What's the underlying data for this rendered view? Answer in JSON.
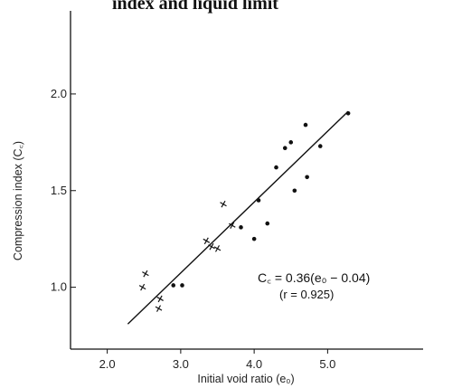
{
  "chart_data": {
    "type": "scatter",
    "title": "index and liquid limit",
    "xlabel": "Initial void ratio (e₀)",
    "ylabel": "Compression index (C꜀)",
    "xlim": [
      1.5,
      6.3
    ],
    "ylim": [
      0.68,
      2.43
    ],
    "x_ticks": [
      {
        "value": 2.0,
        "label": "2.0"
      },
      {
        "value": 3.0,
        "label": "3.0"
      },
      {
        "value": 4.0,
        "label": "4.0"
      },
      {
        "value": 5.0,
        "label": "5.0"
      }
    ],
    "y_ticks": [
      {
        "value": 1.0,
        "label": "1.0"
      },
      {
        "value": 1.5,
        "label": "1.5"
      },
      {
        "value": 2.0,
        "label": "2.0"
      }
    ],
    "grid": false,
    "series": [
      {
        "marker": "cross",
        "points": [
          {
            "x": 2.52,
            "y": 1.07
          },
          {
            "x": 2.48,
            "y": 1.0
          },
          {
            "x": 2.72,
            "y": 0.94
          },
          {
            "x": 2.7,
            "y": 0.89
          },
          {
            "x": 3.35,
            "y": 1.24
          },
          {
            "x": 3.42,
            "y": 1.21
          },
          {
            "x": 3.5,
            "y": 1.2
          },
          {
            "x": 3.58,
            "y": 1.43
          },
          {
            "x": 3.7,
            "y": 1.32
          }
        ]
      },
      {
        "marker": "dot",
        "points": [
          {
            "x": 2.9,
            "y": 1.01
          },
          {
            "x": 3.02,
            "y": 1.01
          },
          {
            "x": 3.82,
            "y": 1.31
          },
          {
            "x": 4.0,
            "y": 1.25
          },
          {
            "x": 4.06,
            "y": 1.45
          },
          {
            "x": 4.18,
            "y": 1.33
          },
          {
            "x": 4.3,
            "y": 1.62
          },
          {
            "x": 4.42,
            "y": 1.72
          },
          {
            "x": 4.5,
            "y": 1.75
          },
          {
            "x": 4.55,
            "y": 1.5
          },
          {
            "x": 4.7,
            "y": 1.84
          },
          {
            "x": 4.72,
            "y": 1.57
          },
          {
            "x": 4.9,
            "y": 1.73
          },
          {
            "x": 5.28,
            "y": 1.9
          }
        ]
      }
    ],
    "regression_line": {
      "x": [
        2.28,
        5.28
      ],
      "y": [
        0.81,
        1.91
      ]
    },
    "annotation": {
      "equation": "C꜀ = 0.36(e₀ − 0.04)",
      "r_label": "(r = 0.925)"
    }
  },
  "colors": {
    "ink": "#111111",
    "background": "#ffffff"
  }
}
